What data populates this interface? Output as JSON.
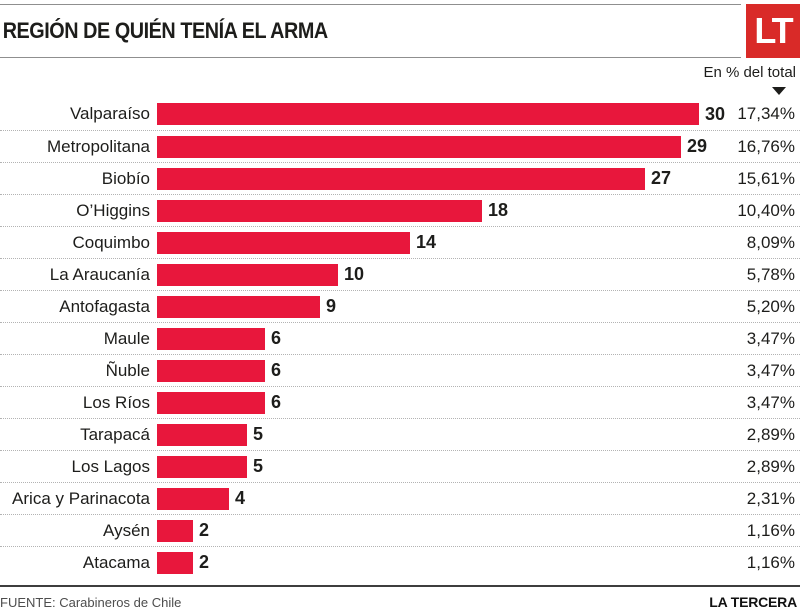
{
  "header": {
    "title": "REGIÓN DE QUIÉN TENÍA EL ARMA",
    "logo_text": "LT"
  },
  "note": {
    "label": "En % del total"
  },
  "chart_data": {
    "type": "bar",
    "orientation": "horizontal",
    "title": "REGIÓN DE QUIÉN TENÍA EL ARMA",
    "value_note": "En % del total",
    "categories": [
      "Valparaíso",
      "Metropolitana",
      "Biobío",
      "O’Higgins",
      "Coquimbo",
      "La Araucanía",
      "Antofagasta",
      "Maule",
      "Ñuble",
      "Los Ríos",
      "Tarapacá",
      "Los Lagos",
      "Arica y Parinacota",
      "Aysén",
      "Atacama"
    ],
    "values": [
      30,
      29,
      27,
      18,
      14,
      10,
      9,
      6,
      6,
      6,
      5,
      5,
      4,
      2,
      2
    ],
    "percent_labels": [
      "17,34%",
      "16,76%",
      "15,61%",
      "10,40%",
      "8,09%",
      "5,78%",
      "5,20%",
      "3,47%",
      "3,47%",
      "3,47%",
      "2,89%",
      "2,89%",
      "2,31%",
      "1,16%",
      "1,16%"
    ],
    "value_axis_max": 30,
    "bar_color": "#e8173c",
    "legend": "none",
    "grid": "dotted-row-separators"
  },
  "footer": {
    "source": "FUENTE: Carabineros de Chile",
    "brand": "LA TERCERA"
  },
  "colors": {
    "bar": "#e8173c",
    "logo_background": "#d92a28",
    "title_text": "#1d1d1b",
    "body_text": "#1d1d1b",
    "source_text": "#4d4d4d",
    "header_rule": "#8f8f8f",
    "row_separator": "#b3b3b3",
    "footer_rule": "#3d3d3d"
  }
}
